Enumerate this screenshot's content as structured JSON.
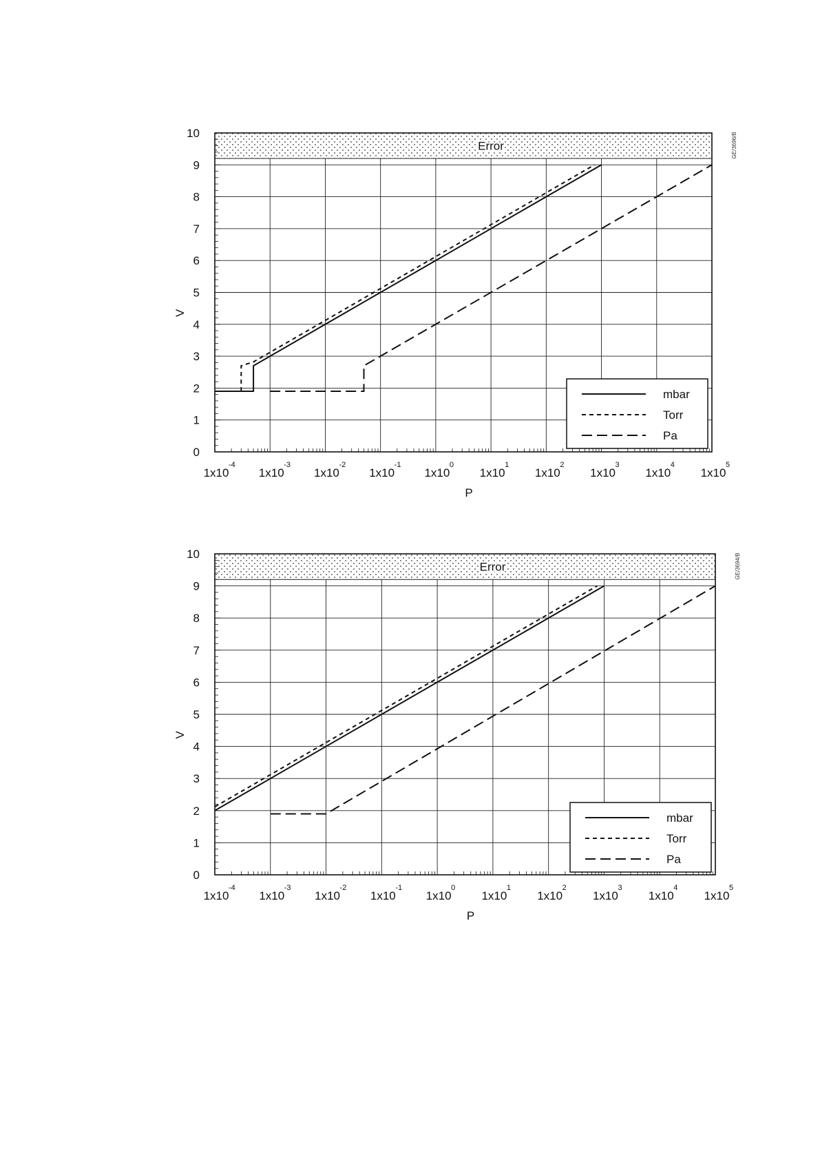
{
  "chart_data": [
    {
      "type": "line",
      "title": "",
      "xlabel": "P",
      "ylabel": "V",
      "xscale": "log",
      "xlim": [
        0.0001,
        100000
      ],
      "ylim": [
        0,
        10
      ],
      "grid": true,
      "legend_position": "bottom-right",
      "x_tick_labels": [
        {
          "base": "1x10",
          "exp": "-4"
        },
        {
          "base": "1x10",
          "exp": "-3"
        },
        {
          "base": "1x10",
          "exp": "-2"
        },
        {
          "base": "1x10",
          "exp": "-1"
        },
        {
          "base": "1x10",
          "exp": "0"
        },
        {
          "base": "1x10",
          "exp": "1"
        },
        {
          "base": "1x10",
          "exp": "2"
        },
        {
          "base": "1x10",
          "exp": "3"
        },
        {
          "base": "1x10",
          "exp": "4"
        },
        {
          "base": "1x10",
          "exp": "5"
        }
      ],
      "y_tick_labels": [
        "0",
        "1",
        "2",
        "3",
        "4",
        "5",
        "6",
        "7",
        "8",
        "9",
        "10"
      ],
      "error_band": {
        "label": "Error",
        "y_range": [
          9.2,
          10
        ]
      },
      "figure_code": "GE/3696/B",
      "series": [
        {
          "name": "mbar",
          "style": "solid",
          "x": [
            0.0001,
            0.0005,
            0.0005,
            1000
          ],
          "y": [
            1.9,
            1.9,
            2.7,
            9.0
          ]
        },
        {
          "name": "Torr",
          "style": "dotted",
          "x": [
            0.0003,
            0.0003,
            0.0005,
            750
          ],
          "y": [
            1.9,
            2.7,
            2.82,
            9.0
          ]
        },
        {
          "name": "Pa",
          "style": "dashed",
          "x": [
            0.001,
            0.05,
            0.05,
            100000
          ],
          "y": [
            1.9,
            1.9,
            2.7,
            9.0
          ]
        }
      ]
    },
    {
      "type": "line",
      "title": "",
      "xlabel": "P",
      "ylabel": "V",
      "xscale": "log",
      "xlim": [
        0.0001,
        100000
      ],
      "ylim": [
        0,
        10
      ],
      "grid": true,
      "legend_position": "bottom-right",
      "x_tick_labels": [
        {
          "base": "1x10",
          "exp": "-4"
        },
        {
          "base": "1x10",
          "exp": "-3"
        },
        {
          "base": "1x10",
          "exp": "-2"
        },
        {
          "base": "1x10",
          "exp": "-1"
        },
        {
          "base": "1x10",
          "exp": "0"
        },
        {
          "base": "1x10",
          "exp": "1"
        },
        {
          "base": "1x10",
          "exp": "2"
        },
        {
          "base": "1x10",
          "exp": "3"
        },
        {
          "base": "1x10",
          "exp": "4"
        },
        {
          "base": "1x10",
          "exp": "5"
        }
      ],
      "y_tick_labels": [
        "0",
        "1",
        "2",
        "3",
        "4",
        "5",
        "6",
        "7",
        "8",
        "9",
        "10"
      ],
      "error_band": {
        "label": "Error",
        "y_range": [
          9.2,
          10
        ]
      },
      "figure_code": "GE/3694/B",
      "series": [
        {
          "name": "mbar",
          "style": "solid",
          "x": [
            0.0001,
            1000
          ],
          "y": [
            2.0,
            9.0
          ]
        },
        {
          "name": "Torr",
          "style": "dotted",
          "x": [
            0.0001,
            750
          ],
          "y": [
            2.12,
            9.0
          ]
        },
        {
          "name": "Pa",
          "style": "dashed",
          "x": [
            0.001,
            0.01,
            100000
          ],
          "y": [
            1.9,
            1.9,
            9.0
          ]
        }
      ]
    }
  ]
}
